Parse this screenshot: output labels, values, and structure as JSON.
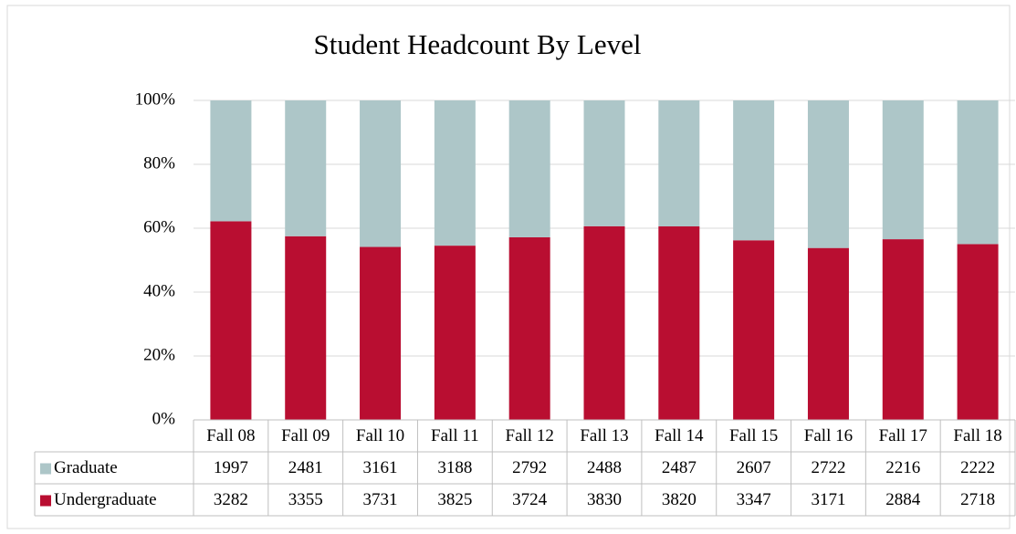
{
  "chart_data": {
    "type": "bar",
    "stacking": "percent",
    "title": "Student Headcount By Level",
    "categories": [
      "Fall 08",
      "Fall 09",
      "Fall 10",
      "Fall 11",
      "Fall 12",
      "Fall 13",
      "Fall 14",
      "Fall 15",
      "Fall 16",
      "Fall 17",
      "Fall 18"
    ],
    "series": [
      {
        "name": "Graduate",
        "color": "#adc6c8",
        "values": [
          1997,
          2481,
          3161,
          3188,
          2792,
          2488,
          2487,
          2607,
          2722,
          2216,
          2222
        ]
      },
      {
        "name": "Undergraduate",
        "color": "#b90e31",
        "values": [
          3282,
          3355,
          3731,
          3825,
          3724,
          3830,
          3820,
          3347,
          3171,
          2884,
          2718
        ]
      }
    ],
    "ylim": [
      0,
      100
    ],
    "yticks": [
      {
        "value": 0,
        "label": "0%"
      },
      {
        "value": 20,
        "label": "20%"
      },
      {
        "value": 40,
        "label": "40%"
      },
      {
        "value": 60,
        "label": "60%"
      },
      {
        "value": 80,
        "label": "80%"
      },
      {
        "value": 100,
        "label": "100%"
      }
    ],
    "grid": true
  }
}
